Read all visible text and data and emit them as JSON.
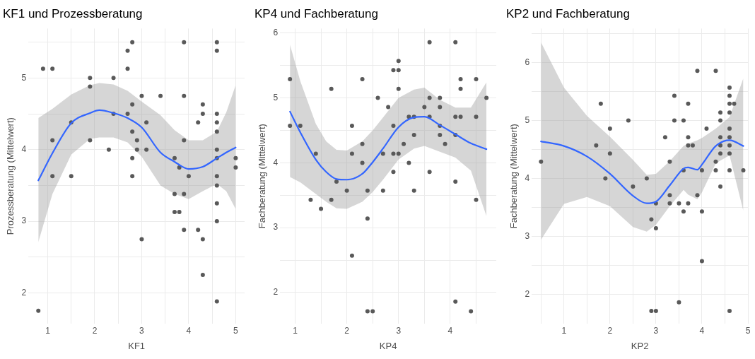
{
  "chart_data": [
    {
      "type": "scatter",
      "title": "KF1 und Prozessberatung",
      "xlabel": "KF1",
      "ylabel": "Prozessberatung (Mittelwert)",
      "xlim": [
        0.59,
        5.19
      ],
      "xticks": [
        1,
        {
          "value": 1.5,
          "label": null
        },
        2,
        {
          "value": 2.5,
          "label": null
        },
        3,
        {
          "value": 3.5,
          "label": null
        },
        4,
        {
          "value": 4.5,
          "label": null
        },
        5
      ],
      "ylim": [
        1.57,
        5.69
      ],
      "yticks": [
        2,
        {
          "value": 2.5,
          "label": null
        },
        3,
        {
          "value": 3.5,
          "label": null
        },
        4,
        {
          "value": 4.5,
          "label": null
        },
        5,
        {
          "value": 5.5,
          "label": null
        }
      ],
      "grid": true,
      "legend": false,
      "series": [
        {
          "type": "scatter",
          "color": "#595959",
          "x": [
            0.8,
            0.9,
            1.1,
            1.1,
            1.1,
            1.5,
            1.5,
            1.9,
            1.9,
            1.9,
            2.3,
            2.4,
            2.4,
            2.7,
            2.7,
            2.7,
            2.8,
            2.8,
            2.8,
            2.8,
            2.8,
            2.9,
            2.9,
            3.0,
            3.0,
            3.1,
            3.1,
            3.4,
            3.7,
            3.7,
            3.7,
            3.8,
            3.8,
            3.9,
            3.9,
            3.9,
            3.9,
            3.9,
            4.0,
            4.2,
            4.2,
            4.3,
            4.3,
            4.3,
            4.3,
            4.6,
            4.6,
            4.6,
            4.6,
            4.6,
            4.6,
            4.6,
            4.6,
            4.6,
            4.6,
            4.6,
            4.6,
            5.0,
            5.0
          ],
          "values": [
            1.75,
            5.13,
            5.13,
            4.13,
            3.63,
            4.38,
            3.63,
            5,
            4.88,
            4.13,
            4,
            5,
            4.5,
            5.38,
            5.13,
            4.5,
            5.5,
            4.63,
            4.25,
            3.88,
            3.63,
            4.13,
            4,
            4.75,
            2.75,
            4.38,
            4,
            4.75,
            3.88,
            3.38,
            3.13,
            3.75,
            3.13,
            5.5,
            4.75,
            4.13,
            3.38,
            2.88,
            3.63,
            4.38,
            2.88,
            4.63,
            4.5,
            2.75,
            2.25,
            5.5,
            5.38,
            4.5,
            4.38,
            4.25,
            4.0,
            3.88,
            3.63,
            3.5,
            3.25,
            3.0,
            1.88,
            3.88,
            3.75
          ],
          "marker": "circle"
        },
        {
          "type": "line",
          "color": "#3366ff",
          "x": [
            0.8,
            1.1,
            1.5,
            1.9,
            2.1,
            2.4,
            2.7,
            3.0,
            3.4,
            3.7,
            4.0,
            4.3,
            4.6,
            4.8,
            5.0
          ],
          "values": [
            3.57,
            3.95,
            4.37,
            4.51,
            4.55,
            4.51,
            4.44,
            4.31,
            3.96,
            3.83,
            3.73,
            3.76,
            3.88,
            3.96,
            4.03
          ],
          "upper": [
            4.44,
            4.57,
            4.77,
            4.9,
            4.93,
            4.91,
            4.82,
            4.67,
            4.48,
            4.27,
            4.13,
            4.13,
            4.25,
            4.52,
            4.9
          ],
          "lower": [
            2.71,
            3.38,
            3.93,
            4.15,
            4.17,
            4.17,
            4.1,
            3.9,
            3.5,
            3.38,
            3.31,
            3.42,
            3.52,
            3.42,
            3.17
          ]
        }
      ]
    },
    {
      "type": "scatter",
      "title": "KP4 und Fachberatung",
      "xlabel": "KP4",
      "ylabel": "Fachberatung (Mittelwert)",
      "xlim": [
        0.71,
        4.89
      ],
      "xticks": [
        1,
        {
          "value": 1.5,
          "label": null
        },
        2,
        {
          "value": 2.5,
          "label": null
        },
        3,
        {
          "value": 3.5,
          "label": null
        },
        4,
        {
          "value": 4.5,
          "label": null
        }
      ],
      "ylim": [
        1.52,
        6.07
      ],
      "yticks": [
        2,
        {
          "value": 2.5,
          "label": null
        },
        3,
        {
          "value": 3.5,
          "label": null
        },
        4,
        {
          "value": 4.5,
          "label": null
        },
        5,
        {
          "value": 5.5,
          "label": null
        },
        6
      ],
      "grid": true,
      "legend": false,
      "series": [
        {
          "type": "scatter",
          "color": "#595959",
          "x": [
            0.9,
            0.9,
            1.1,
            1.3,
            1.4,
            1.5,
            1.7,
            1.7,
            1.8,
            2.0,
            2.1,
            2.1,
            2.1,
            2.3,
            2.3,
            2.3,
            2.4,
            2.4,
            2.4,
            2.5,
            2.6,
            2.7,
            2.7,
            2.8,
            2.9,
            2.9,
            2.9,
            2.9,
            3.0,
            3.0,
            3.0,
            3.0,
            3.1,
            3.2,
            3.2,
            3.3,
            3.3,
            3.3,
            3.5,
            3.6,
            3.6,
            3.6,
            3.6,
            3.8,
            3.8,
            3.8,
            3.8,
            3.9,
            4.1,
            4.1,
            4.1,
            4.1,
            4.1,
            4.2,
            4.2,
            4.2,
            4.4,
            4.5,
            4.5,
            4.5,
            4.7
          ],
          "values": [
            5.29,
            4.57,
            4.57,
            3.43,
            4.14,
            3.29,
            5.14,
            3.43,
            3.71,
            3.57,
            4.57,
            4.14,
            2.57,
            5.29,
            4.29,
            4.0,
            3.57,
            3.14,
            1.71,
            1.71,
            5.0,
            4.14,
            3.57,
            4.86,
            5.43,
            4.57,
            4.14,
            3.86,
            5.57,
            5.43,
            5.14,
            4.14,
            4.29,
            4.71,
            4.0,
            4.71,
            4.43,
            3.57,
            4.86,
            5.86,
            5.0,
            4.71,
            3.86,
            5.0,
            4.86,
            4.57,
            4.43,
            4.29,
            5.86,
            4.71,
            4.43,
            3.71,
            1.86,
            5.29,
            5.14,
            4.71,
            1.71,
            5.29,
            4.71,
            3.43,
            5.0
          ],
          "marker": "circle"
        },
        {
          "type": "line",
          "color": "#3366ff",
          "x": [
            0.9,
            1.1,
            1.4,
            1.6,
            1.8,
            2.0,
            2.3,
            2.5,
            2.7,
            3.0,
            3.3,
            3.5,
            3.8,
            4.1,
            4.4,
            4.7
          ],
          "values": [
            4.79,
            4.47,
            4.05,
            3.86,
            3.75,
            3.74,
            3.83,
            4.01,
            4.22,
            4.55,
            4.7,
            4.71,
            4.58,
            4.44,
            4.3,
            4.21
          ],
          "upper": [
            5.82,
            5.26,
            4.6,
            4.33,
            4.2,
            4.19,
            4.33,
            4.5,
            4.7,
            5.0,
            5.13,
            5.16,
            4.97,
            4.85,
            4.85,
            5.24
          ],
          "lower": [
            3.78,
            3.7,
            3.52,
            3.4,
            3.3,
            3.29,
            3.4,
            3.55,
            3.74,
            4.05,
            4.22,
            4.26,
            4.17,
            4.08,
            3.88,
            3.18
          ]
        }
      ]
    },
    {
      "type": "scatter",
      "title": "KP2 und Fachberatung",
      "xlabel": "KP2",
      "ylabel": "Fachberatung (Mittelwert)",
      "xlim": [
        0.3,
        5.0
      ],
      "xticks": [
        {
          "value": 0.5,
          "label": null
        },
        1,
        {
          "value": 1.5,
          "label": null
        },
        2,
        {
          "value": 2.5,
          "label": null
        },
        3,
        {
          "value": 3.5,
          "label": null
        },
        4,
        {
          "value": 4.5,
          "label": null
        },
        5
      ],
      "ylim": [
        1.49,
        6.59
      ],
      "yticks": [
        2,
        {
          "value": 2.5,
          "label": null
        },
        3,
        {
          "value": 3.5,
          "label": null
        },
        4,
        {
          "value": 4.5,
          "label": null
        },
        5,
        {
          "value": 5.5,
          "label": null
        },
        6,
        {
          "value": 6.5,
          "label": null
        }
      ],
      "grid": true,
      "legend": false,
      "series": [
        {
          "type": "scatter",
          "color": "#595959",
          "x": [
            0.5,
            1.7,
            1.8,
            1.9,
            2.0,
            2.0,
            2.4,
            2.5,
            2.8,
            2.9,
            2.9,
            3.0,
            3.0,
            3.0,
            3.2,
            3.3,
            3.3,
            3.3,
            3.4,
            3.4,
            3.5,
            3.5,
            3.6,
            3.6,
            3.6,
            3.7,
            3.7,
            3.7,
            3.7,
            3.8,
            3.9,
            3.9,
            4.0,
            4.0,
            4.0,
            4.1,
            4.3,
            4.3,
            4.3,
            4.4,
            4.4,
            4.4,
            4.4,
            4.4,
            4.4,
            4.6,
            4.6,
            4.6,
            4.6,
            4.6,
            4.6,
            4.6,
            4.6,
            4.6,
            4.6,
            4.7,
            4.9
          ],
          "values": [
            4.29,
            4.57,
            5.29,
            4.0,
            4.86,
            4.43,
            5.0,
            3.86,
            4.0,
            3.29,
            1.71,
            3.57,
            3.14,
            1.71,
            4.71,
            4.29,
            3.71,
            3.57,
            5.43,
            5.0,
            3.57,
            1.86,
            5.0,
            4.14,
            3.43,
            5.29,
            4.71,
            4.57,
            3.57,
            4.57,
            5.86,
            3.71,
            4.14,
            3.43,
            2.57,
            4.86,
            5.86,
            4.29,
            4.14,
            5.14,
            5.0,
            4.71,
            4.57,
            4.43,
            3.86,
            5.57,
            5.43,
            5.29,
            5.14,
            4.86,
            4.71,
            4.57,
            4.43,
            4.14,
            1.71,
            5.29,
            4.14
          ],
          "marker": "circle"
        },
        {
          "type": "line",
          "color": "#3366ff",
          "x": [
            0.5,
            1.0,
            1.5,
            2.0,
            2.5,
            2.8,
            3.0,
            3.3,
            3.6,
            3.7,
            3.9,
            4.0,
            4.3,
            4.6,
            4.9
          ],
          "values": [
            4.64,
            4.56,
            4.38,
            4.08,
            3.7,
            3.57,
            3.6,
            3.88,
            4.17,
            4.19,
            4.15,
            4.24,
            4.56,
            4.66,
            4.56
          ],
          "upper": [
            6.35,
            5.57,
            5.08,
            4.72,
            4.32,
            4.06,
            4.08,
            4.3,
            4.56,
            4.6,
            4.66,
            4.7,
            4.86,
            5.06,
            5.73
          ],
          "lower": [
            2.94,
            3.56,
            3.68,
            3.52,
            3.16,
            3.08,
            3.2,
            3.52,
            3.8,
            3.72,
            3.64,
            3.76,
            4.26,
            4.4,
            3.44
          ]
        }
      ]
    }
  ]
}
